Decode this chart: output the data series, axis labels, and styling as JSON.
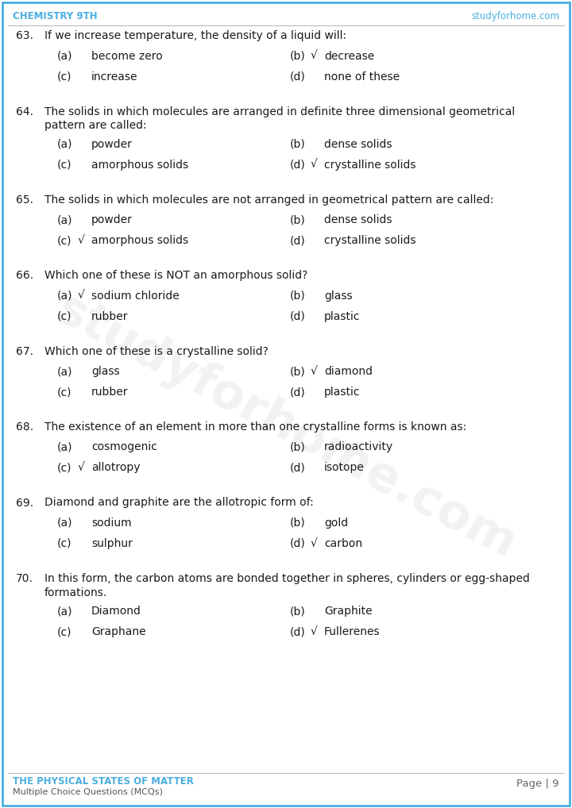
{
  "header_left": "CHEMISTRY 9TH",
  "header_right": "studyforhome.com",
  "header_color": "#4AAEE0",
  "footer_left_line1": "THE PHYSICAL STATES OF MATTER",
  "footer_left_line2": "Multiple Choice Questions (MCQs)",
  "footer_right": "Page | 9",
  "footer_color": "#4AAEE0",
  "watermark": "studyforhome.com",
  "bg_color": "#ffffff",
  "border_color": "#4AAEE0",
  "text_color": "#1a1a1a",
  "separator_color": "#bbbbbb",
  "questions": [
    {
      "num": "63.",
      "question": "If we increase temperature, the density of a liquid will:",
      "options": [
        {
          "label": "(a)",
          "text": "become zero",
          "correct": false
        },
        {
          "label": "(b)",
          "text": "decrease",
          "correct": true
        },
        {
          "label": "(c)",
          "text": "increase",
          "correct": false
        },
        {
          "label": "(d)",
          "text": "none of these",
          "correct": false
        }
      ]
    },
    {
      "num": "64.",
      "question": "The solids in which molecules are arranged in definite three dimensional geometrical\npattern are called:",
      "options": [
        {
          "label": "(a)",
          "text": "powder",
          "correct": false
        },
        {
          "label": "(b)",
          "text": "dense solids",
          "correct": false
        },
        {
          "label": "(c)",
          "text": "amorphous solids",
          "correct": false
        },
        {
          "label": "(d)",
          "text": "crystalline solids",
          "correct": true
        }
      ]
    },
    {
      "num": "65.",
      "question": "The solids in which molecules are not arranged in geometrical pattern are called:",
      "options": [
        {
          "label": "(a)",
          "text": "powder",
          "correct": false
        },
        {
          "label": "(b)",
          "text": "dense solids",
          "correct": false
        },
        {
          "label": "(c)",
          "text": "amorphous solids",
          "correct": true
        },
        {
          "label": "(d)",
          "text": "crystalline solids",
          "correct": false
        }
      ]
    },
    {
      "num": "66.",
      "question": "Which one of these is NOT an amorphous solid?",
      "options": [
        {
          "label": "(a)",
          "text": "sodium chloride",
          "correct": true
        },
        {
          "label": "(b)",
          "text": "glass",
          "correct": false
        },
        {
          "label": "(c)",
          "text": "rubber",
          "correct": false
        },
        {
          "label": "(d)",
          "text": "plastic",
          "correct": false
        }
      ]
    },
    {
      "num": "67.",
      "question": "Which one of these is a crystalline solid?",
      "options": [
        {
          "label": "(a)",
          "text": "glass",
          "correct": false
        },
        {
          "label": "(b)",
          "text": "diamond",
          "correct": true
        },
        {
          "label": "(c)",
          "text": "rubber",
          "correct": false
        },
        {
          "label": "(d)",
          "text": "plastic",
          "correct": false
        }
      ]
    },
    {
      "num": "68.",
      "question": "The existence of an element in more than one crystalline forms is known as:",
      "options": [
        {
          "label": "(a)",
          "text": "cosmogenic",
          "correct": false
        },
        {
          "label": "(b)",
          "text": "radioactivity",
          "correct": false
        },
        {
          "label": "(c)",
          "text": "allotropy",
          "correct": true
        },
        {
          "label": "(d)",
          "text": "isotope",
          "correct": false
        }
      ]
    },
    {
      "num": "69.",
      "question": "Diamond and graphite are the allotropic form of:",
      "options": [
        {
          "label": "(a)",
          "text": "sodium",
          "correct": false
        },
        {
          "label": "(b)",
          "text": "gold",
          "correct": false
        },
        {
          "label": "(c)",
          "text": "sulphur",
          "correct": false
        },
        {
          "label": "(d)",
          "text": "carbon",
          "correct": true
        }
      ]
    },
    {
      "num": "70.",
      "question": "In this form, the carbon atoms are bonded together in spheres, cylinders or egg-shaped\nformations.",
      "options": [
        {
          "label": "(a)",
          "text": "Diamond",
          "correct": false
        },
        {
          "label": "(b)",
          "text": "Graphite",
          "correct": false
        },
        {
          "label": "(c)",
          "text": "Graphane",
          "correct": false
        },
        {
          "label": "(d)",
          "text": "Fullerenes",
          "correct": true
        }
      ]
    }
  ]
}
